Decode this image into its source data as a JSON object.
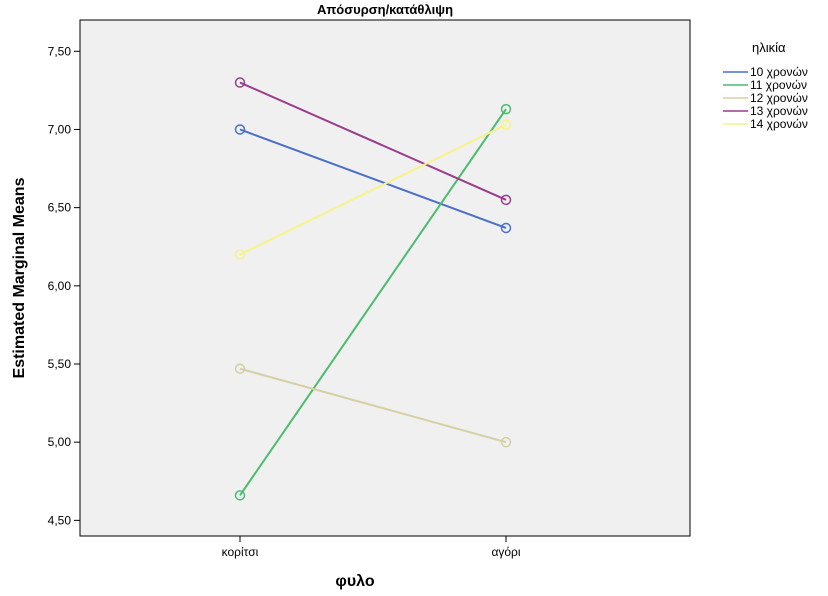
{
  "chart_data": {
    "type": "line",
    "title": "Απόσυρση/κατάθλιψη",
    "xlabel": "φυλο",
    "ylabel": "Estimated Marginal Means",
    "categories": [
      "κορίτσι",
      "αγόρι"
    ],
    "ylim": [
      4.4,
      7.7
    ],
    "yticks": [
      4.5,
      5.0,
      5.5,
      6.0,
      6.5,
      7.0,
      7.5
    ],
    "ytick_labels": [
      "4,50",
      "5,00",
      "5,50",
      "6,00",
      "6,50",
      "7,00",
      "7,50"
    ],
    "grid": false,
    "legend": {
      "title": "ηλικία",
      "placement": "right"
    },
    "series": [
      {
        "name": "10 χρονών",
        "values": [
          7.0,
          6.37
        ],
        "color": "#4a6fc9"
      },
      {
        "name": "11 χρονών",
        "values": [
          4.66,
          7.13
        ],
        "color": "#4cbc6e"
      },
      {
        "name": "12 χρονών",
        "values": [
          5.47,
          5.0
        ],
        "color": "#d6cfa3"
      },
      {
        "name": "13 χρονών",
        "values": [
          7.3,
          6.55
        ],
        "color": "#9a3c8c"
      },
      {
        "name": "14 χρονών",
        "values": [
          6.2,
          7.03
        ],
        "color": "#f6f38a"
      }
    ]
  }
}
